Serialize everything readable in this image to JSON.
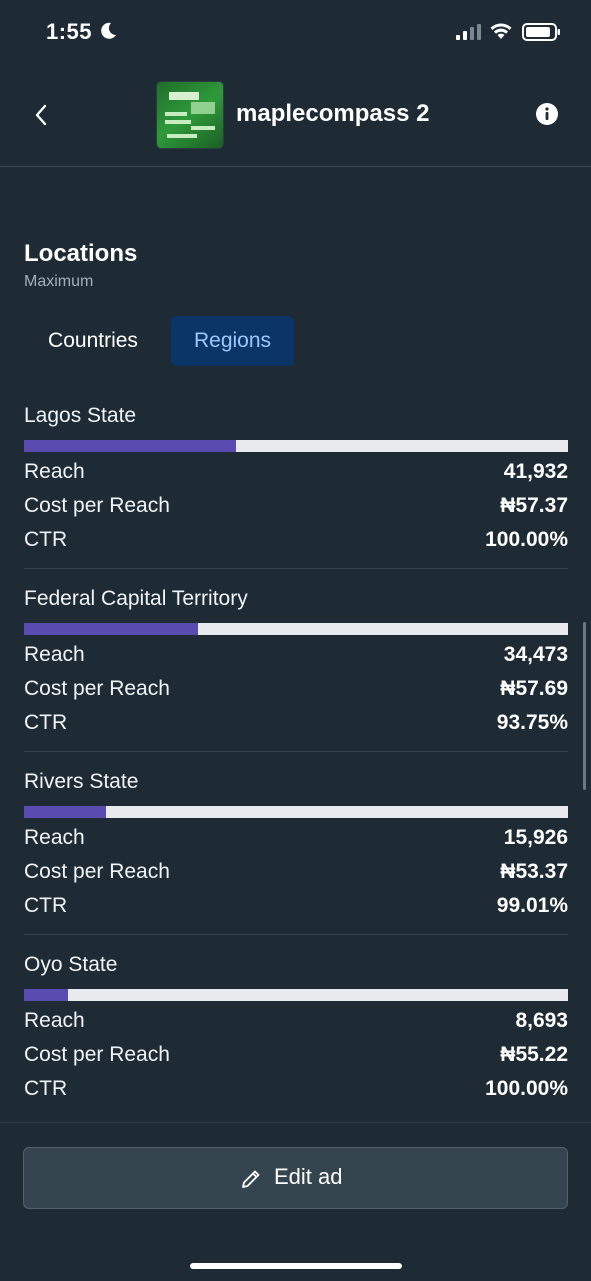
{
  "status_bar": {
    "time": "1:55"
  },
  "header": {
    "title": "maplecompass 2"
  },
  "section": {
    "title": "Locations",
    "subtitle": "Maximum"
  },
  "tabs": [
    {
      "label": "Countries",
      "selected": false
    },
    {
      "label": "Regions",
      "selected": true
    }
  ],
  "metric_labels": {
    "reach": "Reach",
    "cost": "Cost per Reach",
    "ctr": "CTR"
  },
  "regions": [
    {
      "name": "Lagos State",
      "reach": "41,932",
      "cost": "₦57.37",
      "ctr": "100.00%",
      "bar_fraction": 0.39
    },
    {
      "name": "Federal Capital Territory",
      "reach": "34,473",
      "cost": "₦57.69",
      "ctr": "93.75%",
      "bar_fraction": 0.32
    },
    {
      "name": "Rivers State",
      "reach": "15,926",
      "cost": "₦53.37",
      "ctr": "99.01%",
      "bar_fraction": 0.15
    },
    {
      "name": "Oyo State",
      "reach": "8,693",
      "cost": "₦55.22",
      "ctr": "100.00%",
      "bar_fraction": 0.08
    }
  ],
  "footer": {
    "edit_label": "Edit ad"
  },
  "colors": {
    "accent": "#5a4bb0",
    "selected_tab_bg": "#0b3566",
    "selected_tab_text": "#9cc8ff",
    "background": "#1e2a34"
  }
}
